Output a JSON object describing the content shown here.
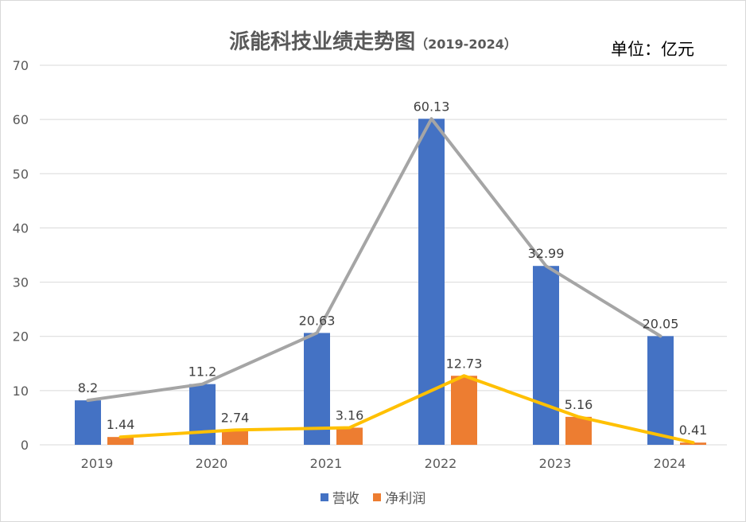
{
  "chart_data": {
    "type": "bar",
    "title": "派能科技业绩走势图",
    "subtitle": "（2019-2024）",
    "unit_label": "单位：亿元",
    "categories": [
      "2019",
      "2020",
      "2021",
      "2022",
      "2023",
      "2024"
    ],
    "series": [
      {
        "name": "营收",
        "values": [
          8.2,
          11.2,
          20.63,
          60.13,
          32.99,
          20.05
        ],
        "color": "#4472C4",
        "labels": [
          "8.2",
          "11.2",
          "20.63",
          "60.13",
          "32.99",
          "20.05"
        ]
      },
      {
        "name": "净利润",
        "values": [
          1.44,
          2.74,
          3.16,
          12.73,
          5.16,
          0.41
        ],
        "color": "#ED7D31",
        "labels": [
          "1.44",
          "2.74",
          "3.16",
          "12.73",
          "5.16",
          "0.41"
        ]
      }
    ],
    "trend_lines": [
      {
        "of": "营收",
        "color": "#A5A5A5"
      },
      {
        "of": "净利润",
        "color": "#FFC000"
      }
    ],
    "ylim": [
      0,
      70
    ],
    "yticks": [
      "0",
      "10",
      "20",
      "30",
      "40",
      "50",
      "60",
      "70"
    ],
    "grid": true,
    "legend_position": "bottom"
  }
}
